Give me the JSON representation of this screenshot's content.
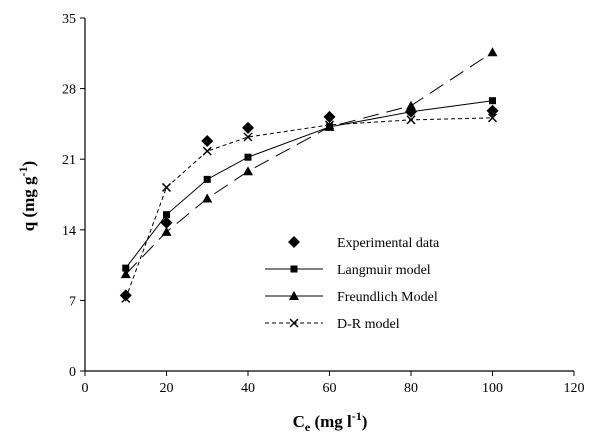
{
  "chart_data": {
    "type": "scatter",
    "xlabel": {
      "main": "C",
      "sub": "e",
      "unit_pre": " (mg l",
      "unit_sup": "-1",
      "unit_post": ")"
    },
    "ylabel": {
      "main": "q",
      "unit_pre": " (mg g",
      "unit_sup": "-1",
      "unit_post": ")"
    },
    "xlim": [
      0,
      120
    ],
    "ylim": [
      0,
      35
    ],
    "x_ticks": [
      "0",
      "20",
      "40",
      "60",
      "80",
      "100",
      "120"
    ],
    "y_ticks": [
      "0",
      "7",
      "14",
      "21",
      "28",
      "35"
    ],
    "grid": false,
    "legend_position": "lower-right",
    "series": [
      {
        "name": "Experimental data",
        "marker": "diamond",
        "line": "none",
        "points": [
          [
            10,
            7.5
          ],
          [
            20,
            14.7
          ],
          [
            30,
            22.8
          ],
          [
            40,
            24.1
          ],
          [
            60,
            25.2
          ],
          [
            80,
            25.7
          ],
          [
            100,
            25.8
          ]
        ]
      },
      {
        "name": "Langmuir model",
        "marker": "square",
        "line": "solid",
        "points": [
          [
            10,
            10.2
          ],
          [
            20,
            15.5
          ],
          [
            30,
            19.0
          ],
          [
            40,
            21.2
          ],
          [
            60,
            24.2
          ],
          [
            80,
            25.7
          ],
          [
            100,
            26.8
          ]
        ]
      },
      {
        "name": "Freundlich Model",
        "marker": "triangle",
        "line": "longdash",
        "points": [
          [
            10,
            9.6
          ],
          [
            20,
            13.8
          ],
          [
            30,
            17.1
          ],
          [
            40,
            19.8
          ],
          [
            60,
            24.2
          ],
          [
            80,
            26.3
          ],
          [
            100,
            31.6
          ]
        ]
      },
      {
        "name": "D-R model",
        "marker": "x",
        "line": "dashed",
        "points": [
          [
            10,
            7.2
          ],
          [
            20,
            18.2
          ],
          [
            30,
            21.8
          ],
          [
            40,
            23.2
          ],
          [
            60,
            24.4
          ],
          [
            80,
            24.9
          ],
          [
            100,
            25.1
          ]
        ]
      }
    ]
  }
}
